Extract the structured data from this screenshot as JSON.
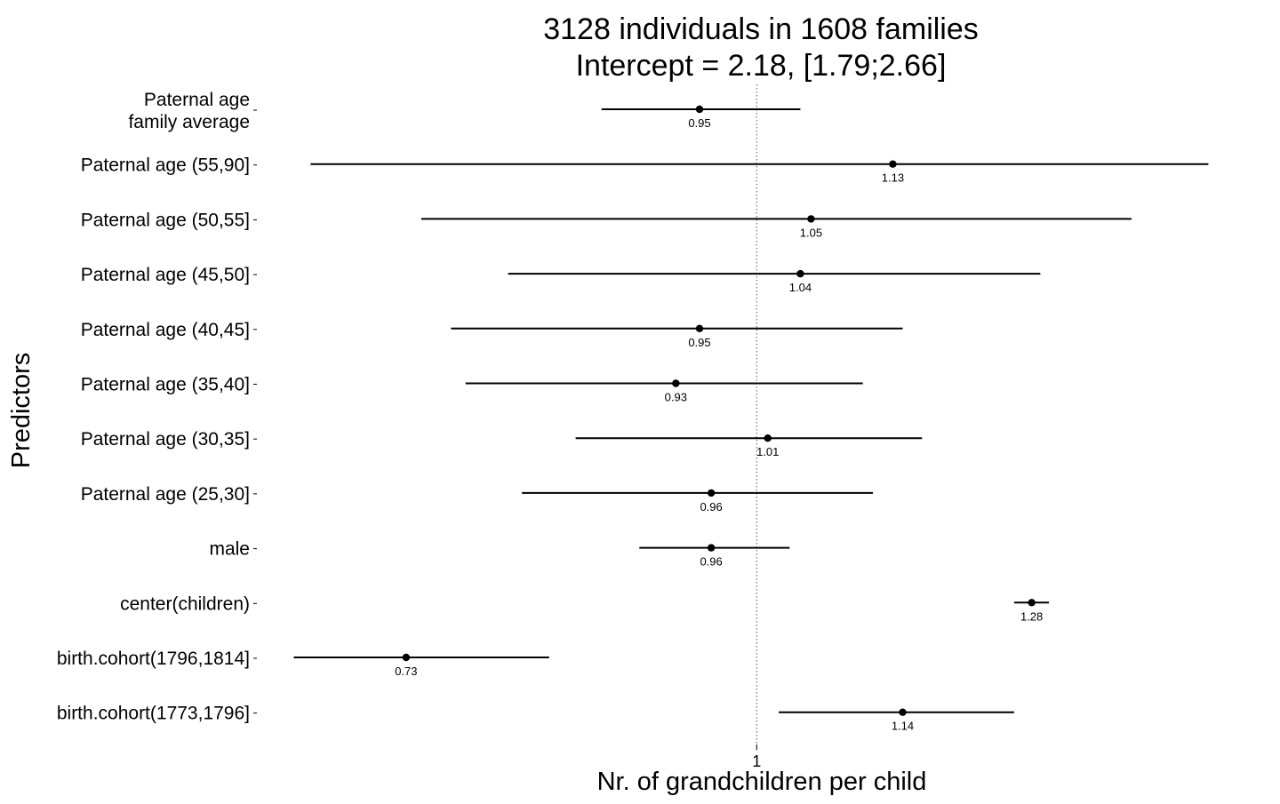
{
  "chart_data": {
    "type": "forest",
    "title_line1": "3128 individuals in 1608 families",
    "title_line2": "Intercept = 2.18, [1.79;2.66]",
    "xlabel": "Nr. of grandchildren per child",
    "ylabel": "Predictors",
    "x_scale": "log",
    "x_ticks": [
      "1"
    ],
    "reference_line": 1,
    "xlim": [
      0.665,
      1.52
    ],
    "grid": false,
    "points": [
      {
        "label": [
          "Paternal age",
          "family average"
        ],
        "estimate": 0.95,
        "ci_low": 0.87,
        "ci_high": 1.04,
        "value_label": "0.95"
      },
      {
        "label": [
          "Paternal age (55,90]"
        ],
        "estimate": 1.13,
        "ci_low": 0.67,
        "ci_high": 1.5,
        "value_label": "1.13"
      },
      {
        "label": [
          "Paternal age (50,55]"
        ],
        "estimate": 1.05,
        "ci_low": 0.74,
        "ci_high": 1.4,
        "value_label": "1.05"
      },
      {
        "label": [
          "Paternal age (45,50]"
        ],
        "estimate": 1.04,
        "ci_low": 0.8,
        "ci_high": 1.29,
        "value_label": "1.04"
      },
      {
        "label": [
          "Paternal age (40,45]"
        ],
        "estimate": 0.95,
        "ci_low": 0.76,
        "ci_high": 1.14,
        "value_label": "0.95"
      },
      {
        "label": [
          "Paternal age (35,40]"
        ],
        "estimate": 0.93,
        "ci_low": 0.77,
        "ci_high": 1.1,
        "value_label": "0.93"
      },
      {
        "label": [
          "Paternal age (30,35]"
        ],
        "estimate": 1.01,
        "ci_low": 0.85,
        "ci_high": 1.16,
        "value_label": "1.01"
      },
      {
        "label": [
          "Paternal age (25,30]"
        ],
        "estimate": 0.96,
        "ci_low": 0.81,
        "ci_high": 1.11,
        "value_label": "0.96"
      },
      {
        "label": [
          "male"
        ],
        "estimate": 0.96,
        "ci_low": 0.9,
        "ci_high": 1.03,
        "value_label": "0.96"
      },
      {
        "label": [
          "center(children)"
        ],
        "estimate": 1.28,
        "ci_low": 1.26,
        "ci_high": 1.3,
        "value_label": "1.28"
      },
      {
        "label": [
          "birth.cohort(1796,1814]"
        ],
        "estimate": 0.73,
        "ci_low": 0.66,
        "ci_high": 0.83,
        "value_label": "0.73"
      },
      {
        "label": [
          "birth.cohort(1773,1796]"
        ],
        "estimate": 1.14,
        "ci_low": 1.02,
        "ci_high": 1.26,
        "value_label": "1.14"
      }
    ]
  }
}
